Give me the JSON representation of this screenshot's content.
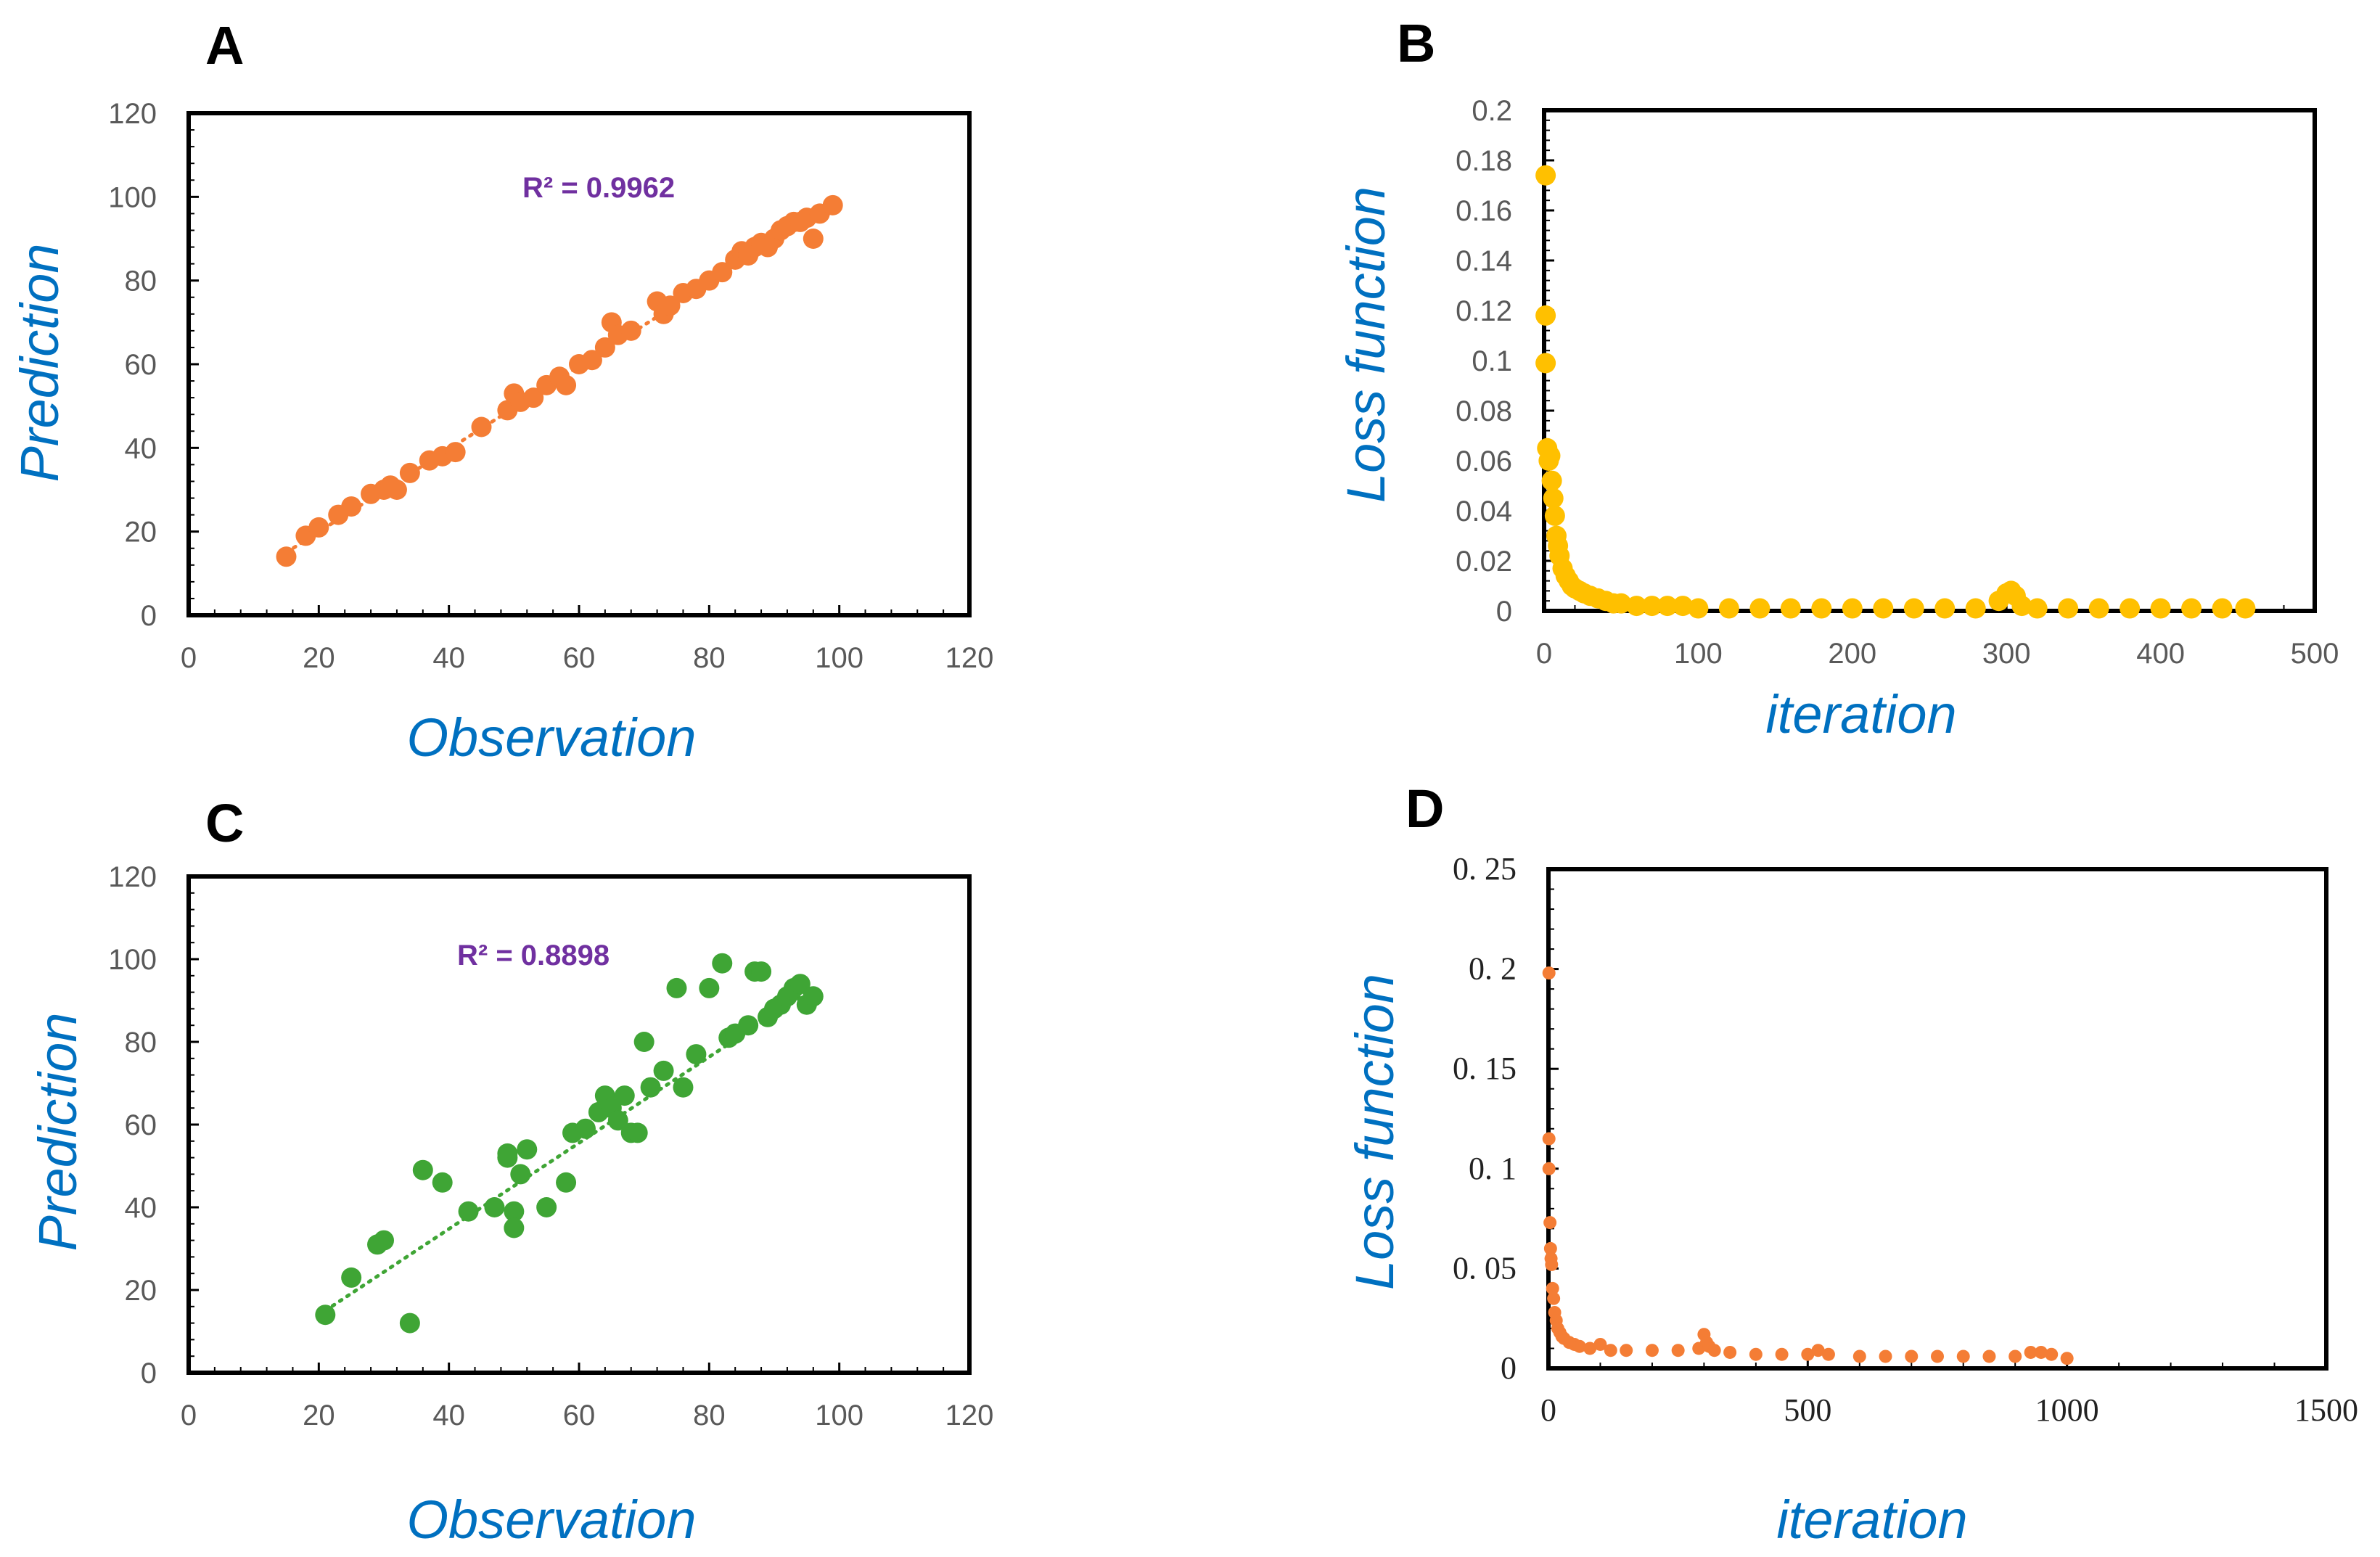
{
  "colors": {
    "axis_title": "#0070C0",
    "r2_label": "#7030A0",
    "panel_a_points": "#F47D35",
    "panel_b_points": "#FFC000",
    "panel_c_points": "#3FA535",
    "panel_d_points": "#F47D35",
    "frame": "#000000"
  },
  "chart_data": [
    {
      "id": "A",
      "panel_label": "A",
      "type": "scatter",
      "xlabel": "Observation",
      "ylabel": "Prediction",
      "xlim": [
        0,
        120
      ],
      "ylim": [
        0,
        120
      ],
      "xticks": [
        "0",
        "20",
        "40",
        "60",
        "80",
        "100",
        "120"
      ],
      "yticks": [
        "0",
        "20",
        "40",
        "60",
        "80",
        "100",
        "120"
      ],
      "annotation": "R² = 0.9962",
      "trendline": {
        "x": [
          15,
          99
        ],
        "y": [
          15,
          98
        ]
      },
      "points": {
        "x": [
          15,
          18,
          20,
          23,
          25,
          28,
          30,
          31,
          32,
          34,
          37,
          39,
          41,
          45,
          49,
          50,
          51,
          53,
          55,
          57,
          58,
          60,
          62,
          64,
          65,
          66,
          68,
          72,
          73,
          74,
          76,
          78,
          80,
          82,
          84,
          85,
          86,
          87,
          88,
          89,
          90,
          91,
          92,
          93,
          94,
          95,
          96,
          97,
          99
        ],
        "y": [
          14,
          19,
          21,
          24,
          26,
          29,
          30,
          31,
          30,
          34,
          37,
          38,
          39,
          45,
          49,
          53,
          51,
          52,
          55,
          57,
          55,
          60,
          61,
          64,
          70,
          67,
          68,
          75,
          72,
          74,
          77,
          78,
          80,
          82,
          85,
          87,
          86,
          88,
          89,
          88,
          90,
          92,
          93,
          94,
          94,
          95,
          90,
          96,
          98
        ]
      }
    },
    {
      "id": "B",
      "panel_label": "B",
      "type": "scatter",
      "xlabel": "iteration",
      "ylabel": "Loss function",
      "xlim": [
        0,
        500
      ],
      "ylim": [
        0,
        0.2
      ],
      "xticks": [
        "0",
        "100",
        "200",
        "300",
        "400",
        "500"
      ],
      "yticks": [
        "0",
        "0.02",
        "0.04",
        "0.06",
        "0.08",
        "0.1",
        "0.12",
        "0.14",
        "0.16",
        "0.18",
        "0.2"
      ],
      "points": {
        "x": [
          1,
          1,
          1,
          2,
          3,
          4,
          5,
          6,
          7,
          8,
          9,
          10,
          12,
          14,
          16,
          18,
          20,
          23,
          26,
          30,
          35,
          40,
          45,
          50,
          60,
          70,
          80,
          90,
          100,
          120,
          140,
          160,
          180,
          200,
          220,
          240,
          260,
          280,
          295,
          300,
          303,
          306,
          310,
          320,
          340,
          360,
          380,
          400,
          420,
          440,
          455
        ],
        "y": [
          0.174,
          0.118,
          0.099,
          0.065,
          0.06,
          0.062,
          0.052,
          0.045,
          0.038,
          0.03,
          0.026,
          0.022,
          0.017,
          0.014,
          0.012,
          0.01,
          0.009,
          0.008,
          0.007,
          0.006,
          0.005,
          0.004,
          0.003,
          0.003,
          0.002,
          0.002,
          0.002,
          0.002,
          0.001,
          0.001,
          0.001,
          0.001,
          0.001,
          0.001,
          0.001,
          0.001,
          0.001,
          0.001,
          0.004,
          0.007,
          0.008,
          0.006,
          0.002,
          0.001,
          0.001,
          0.001,
          0.001,
          0.001,
          0.001,
          0.001,
          0.001
        ]
      }
    },
    {
      "id": "C",
      "panel_label": "C",
      "type": "scatter",
      "xlabel": "Observation",
      "ylabel": "Prediction",
      "xlim": [
        0,
        120
      ],
      "ylim": [
        0,
        120
      ],
      "xticks": [
        "0",
        "20",
        "40",
        "60",
        "80",
        "100",
        "120"
      ],
      "yticks": [
        "0",
        "20",
        "40",
        "60",
        "80",
        "100",
        "120"
      ],
      "annotation": "R² = 0.8898",
      "trendline": {
        "x": [
          21,
          96
        ],
        "y": [
          15,
          93
        ]
      },
      "points": {
        "x": [
          21,
          25,
          29,
          30,
          34,
          36,
          39,
          43,
          47,
          49,
          49,
          50,
          50,
          51,
          52,
          55,
          58,
          59,
          61,
          63,
          64,
          65,
          66,
          67,
          68,
          69,
          70,
          71,
          73,
          75,
          76,
          78,
          80,
          82,
          83,
          84,
          86,
          87,
          88,
          89,
          90,
          91,
          92,
          93,
          94,
          95,
          96
        ],
        "y": [
          14,
          23,
          31,
          32,
          12,
          49,
          46,
          39,
          40,
          53,
          52,
          39,
          35,
          48,
          54,
          40,
          46,
          58,
          59,
          63,
          67,
          64,
          61,
          67,
          58,
          58,
          80,
          69,
          73,
          93,
          69,
          77,
          93,
          99,
          81,
          82,
          84,
          97,
          97,
          86,
          88,
          89,
          91,
          93,
          94,
          89,
          91
        ]
      }
    },
    {
      "id": "D",
      "panel_label": "D",
      "type": "scatter",
      "xlabel": "iteration",
      "ylabel": "Loss function",
      "xlim": [
        0,
        1500
      ],
      "ylim": [
        0,
        0.25
      ],
      "xticks": [
        "0",
        "500",
        "1000",
        "1500"
      ],
      "yticks": [
        "0",
        "0. 05",
        "0. 1",
        "0. 15",
        "0. 2",
        "0. 25"
      ],
      "points": {
        "x": [
          1,
          1,
          1,
          3,
          4,
          5,
          6,
          8,
          10,
          12,
          15,
          18,
          22,
          26,
          30,
          40,
          50,
          60,
          80,
          100,
          120,
          150,
          200,
          250,
          290,
          300,
          305,
          310,
          320,
          350,
          400,
          450,
          500,
          520,
          540,
          600,
          650,
          700,
          750,
          800,
          850,
          900,
          930,
          950,
          970,
          1000
        ],
        "y": [
          0.198,
          0.115,
          0.1,
          0.073,
          0.06,
          0.055,
          0.052,
          0.04,
          0.035,
          0.028,
          0.024,
          0.02,
          0.018,
          0.016,
          0.015,
          0.013,
          0.012,
          0.011,
          0.01,
          0.012,
          0.009,
          0.009,
          0.009,
          0.009,
          0.01,
          0.017,
          0.013,
          0.011,
          0.009,
          0.008,
          0.007,
          0.007,
          0.007,
          0.009,
          0.007,
          0.006,
          0.006,
          0.006,
          0.006,
          0.006,
          0.006,
          0.006,
          0.008,
          0.008,
          0.007,
          0.005
        ]
      }
    }
  ]
}
